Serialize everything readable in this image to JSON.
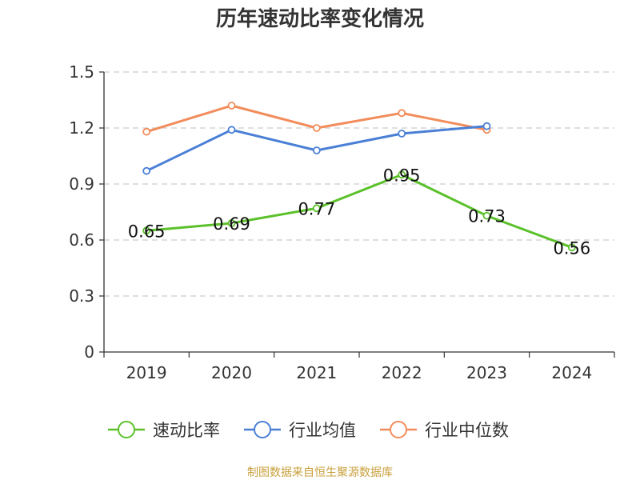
{
  "chart_data": {
    "type": "line",
    "title": "历年速动比率变化情况",
    "categories": [
      "2019",
      "2020",
      "2021",
      "2022",
      "2023",
      "2024"
    ],
    "ylim": [
      0,
      1.5
    ],
    "yticks": [
      0,
      0.3,
      0.6,
      0.9,
      1.2,
      1.5
    ],
    "ytick_labels": [
      "0",
      "0.3",
      "0.6",
      "0.9",
      "1.2",
      "1.5"
    ],
    "grid": true,
    "legend_position": "bottom",
    "series": [
      {
        "name": "速动比率",
        "color": "#5bc12a",
        "values": [
          0.65,
          0.69,
          0.77,
          0.95,
          0.73,
          0.56
        ],
        "labels": [
          "0.65",
          "0.69",
          "0.77",
          "0.95",
          "0.73",
          "0.56"
        ],
        "show_labels": true
      },
      {
        "name": "行业均值",
        "color": "#4a7fd6",
        "values": [
          0.97,
          1.19,
          1.08,
          1.17,
          1.21,
          null
        ],
        "show_labels": false
      },
      {
        "name": "行业中位数",
        "color": "#f28c5b",
        "values": [
          1.18,
          1.32,
          1.2,
          1.28,
          1.19,
          null
        ],
        "show_labels": false
      }
    ]
  },
  "source_text": "制图数据来自恒生聚源数据库"
}
